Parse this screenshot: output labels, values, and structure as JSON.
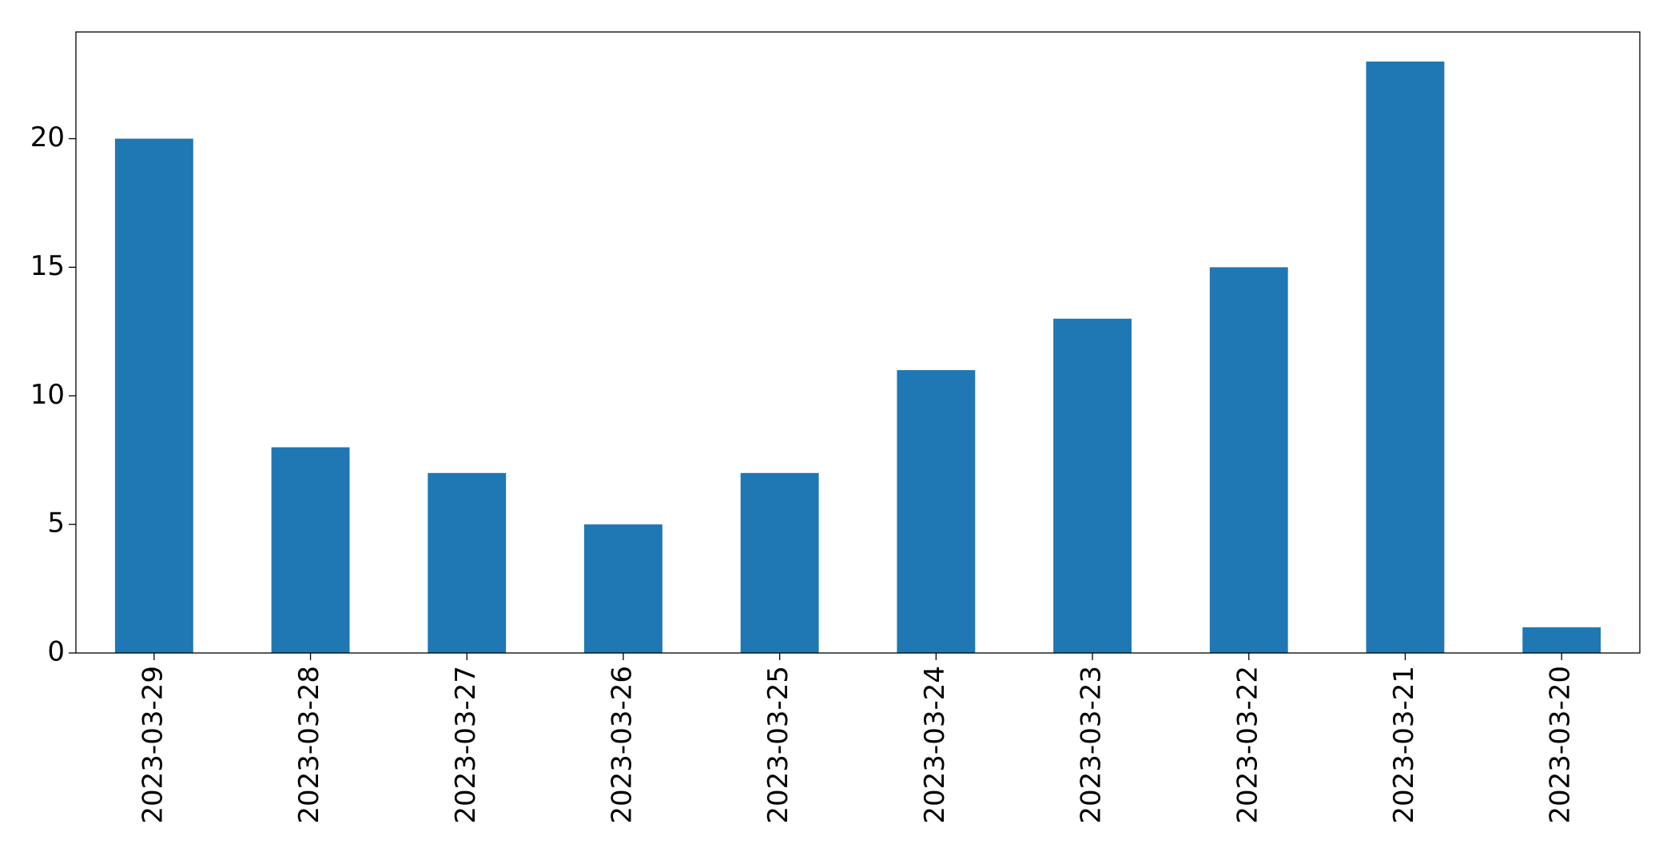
{
  "chart_data": {
    "type": "bar",
    "categories": [
      "2023-03-29",
      "2023-03-28",
      "2023-03-27",
      "2023-03-26",
      "2023-03-25",
      "2023-03-24",
      "2023-03-23",
      "2023-03-22",
      "2023-03-21",
      "2023-03-20"
    ],
    "values": [
      20,
      8,
      7,
      5,
      7,
      11,
      13,
      15,
      23,
      1
    ],
    "color": "#1f77b4",
    "ylim": [
      0,
      24.15
    ],
    "yticks": [
      0,
      5,
      10,
      15,
      20
    ],
    "grid": false
  }
}
